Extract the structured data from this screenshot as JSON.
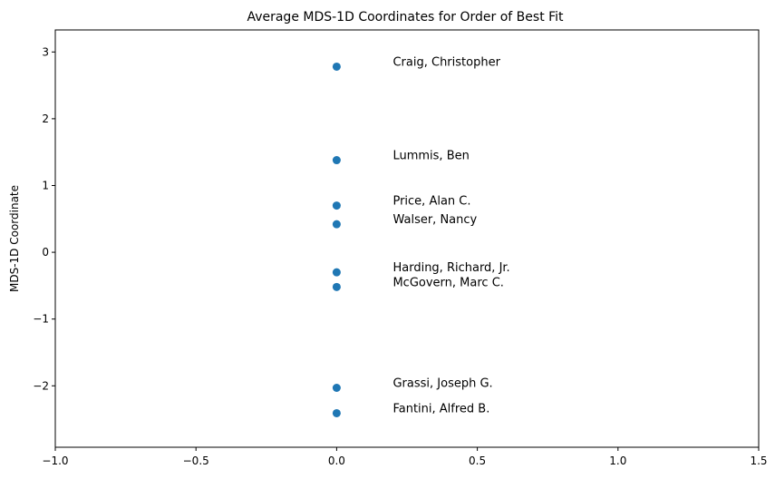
{
  "chart_data": {
    "type": "scatter",
    "title": "Average MDS-1D Coordinates for Order of Best Fit",
    "xlabel": "",
    "ylabel": "MDS-1D Coordinate",
    "xlim": [
      -1.0,
      1.5
    ],
    "ylim": [
      -2.92,
      3.33
    ],
    "xticks": [
      -1.0,
      -0.5,
      0.0,
      0.5,
      1.0,
      1.5
    ],
    "xtick_labels": [
      "−1.0",
      "−0.5",
      "0.0",
      "0.5",
      "1.0",
      "1.5"
    ],
    "yticks": [
      3,
      2,
      1,
      0,
      -1,
      -2
    ],
    "ytick_labels": [
      "3",
      "2",
      "1",
      "0",
      "−1",
      "−2"
    ],
    "grid": false,
    "marker_color": "#1f77b4",
    "points": [
      {
        "label": "Craig, Christopher",
        "x": 0.0,
        "y": 2.78
      },
      {
        "label": "Lummis, Ben",
        "x": 0.0,
        "y": 1.38
      },
      {
        "label": "Price, Alan C.",
        "x": 0.0,
        "y": 0.7
      },
      {
        "label": "Walser, Nancy",
        "x": 0.0,
        "y": 0.42
      },
      {
        "label": "Harding, Richard, Jr.",
        "x": 0.0,
        "y": -0.3
      },
      {
        "label": "McGovern, Marc C.",
        "x": 0.0,
        "y": -0.52
      },
      {
        "label": "Grassi, Joseph G.",
        "x": 0.0,
        "y": -2.03
      },
      {
        "label": "Fantini, Alfred B.",
        "x": 0.0,
        "y": -2.41
      }
    ],
    "label_x_offset": 0.2
  }
}
